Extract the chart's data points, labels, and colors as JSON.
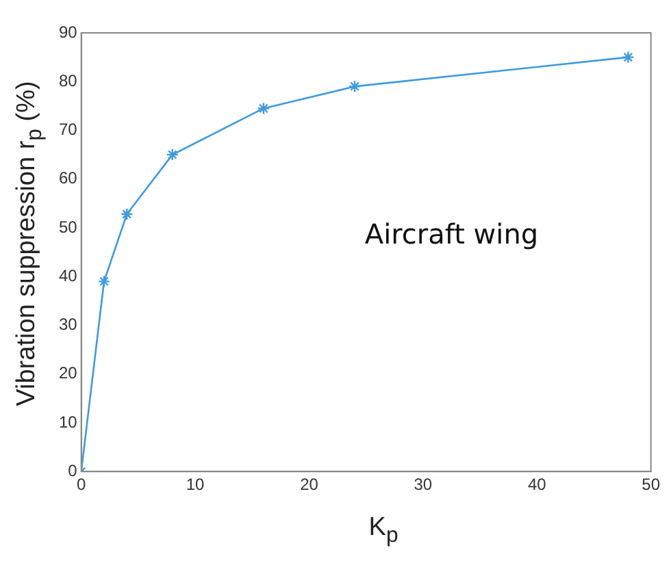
{
  "chart_data": {
    "type": "line",
    "xlabel": "K$_{p}$",
    "ylabel": "Vibration suppression  r$_{p}$ (%)",
    "annotations": [
      "Aircraft wing"
    ],
    "x": [
      0,
      2,
      4,
      8,
      16,
      24,
      48
    ],
    "series": [
      {
        "color": "#3d9be0",
        "values": [
          0,
          39,
          52.8,
          65,
          74.5,
          79,
          85
        ]
      }
    ],
    "xlim": [
      0,
      50
    ],
    "xticks": [
      0,
      10,
      20,
      30,
      40,
      50
    ],
    "ylim": [
      0,
      90
    ],
    "yticks": [
      0,
      10,
      20,
      30,
      40,
      50,
      60,
      70,
      80,
      90
    ],
    "grid": false,
    "legend": false,
    "marker": "cross",
    "line_style": "solid"
  }
}
